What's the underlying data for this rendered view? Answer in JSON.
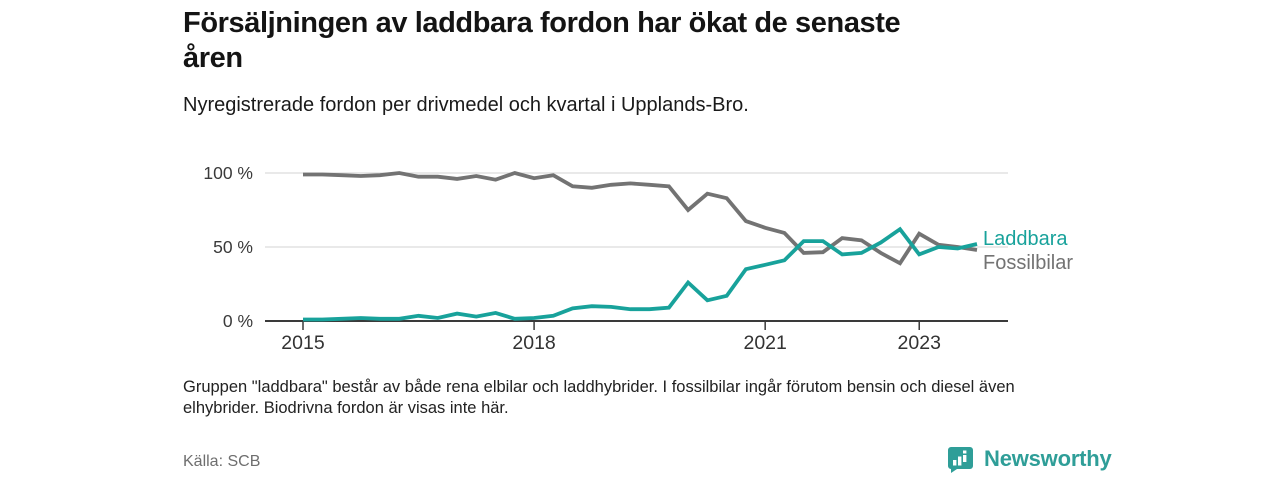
{
  "header": {
    "title_line1": "Försäljningen av laddbara fordon har ökat de senaste",
    "title_line2": "åren",
    "subtitle": "Nyregistrerade fordon per drivmedel och kvartal i Upplands-Bro."
  },
  "chart_data": {
    "type": "line",
    "title": "Försäljningen av laddbara fordon har ökat de senaste åren",
    "subtitle": "Nyregistrerade fordon per drivmedel och kvartal i Upplands-Bro.",
    "unit": "%",
    "x_interval": "quarter",
    "x_start": "2015 Q1",
    "x_end": "2023 Q4",
    "n_points": 36,
    "ylim": [
      0,
      100
    ],
    "grid": "horizontal",
    "legend_position": "right-of-line-ends",
    "x_ticks": [
      {
        "label": "2015",
        "index": 0
      },
      {
        "label": "2018",
        "index": 12
      },
      {
        "label": "2021",
        "index": 24
      },
      {
        "label": "2023",
        "index": 32
      }
    ],
    "y_ticks": [
      {
        "label": "100 %",
        "value": 100
      },
      {
        "label": "50 %",
        "value": 50
      },
      {
        "label": "0 %",
        "value": 0
      }
    ],
    "series": [
      {
        "name": "Laddbara",
        "color": "#18a29b",
        "values": [
          1,
          1,
          1.5,
          2,
          1.5,
          1.5,
          3.5,
          2,
          5,
          3,
          5.5,
          1.5,
          2,
          3.5,
          8.5,
          10,
          9.5,
          8,
          8,
          9,
          26,
          14,
          17,
          35,
          38,
          41,
          54,
          54,
          45,
          46,
          53,
          62,
          45,
          50,
          49,
          52
        ]
      },
      {
        "name": "Fossilbilar",
        "color": "#737373",
        "values": [
          99,
          99,
          98.5,
          98,
          98.5,
          100,
          97.5,
          97.5,
          96,
          98,
          95.5,
          100,
          96.5,
          98.5,
          91,
          90,
          92,
          93,
          92,
          91,
          75,
          86,
          83,
          67.5,
          63,
          59.5,
          46,
          46.5,
          56,
          54.5,
          46,
          39,
          59,
          51.5,
          50,
          48
        ]
      }
    ]
  },
  "footnote": {
    "line1": "Gruppen \"laddbara\" består av både rena elbilar och laddhybrider. I fossilbilar ingår förutom bensin och diesel även",
    "line2": "elhybrider. Biodrivna fordon är visas inte här."
  },
  "source": {
    "label": "Källa: SCB"
  },
  "brand": {
    "name": "Newsworthy",
    "color": "#2f9e98",
    "icon": "newsworthy-bar-chart-bubble-icon"
  }
}
